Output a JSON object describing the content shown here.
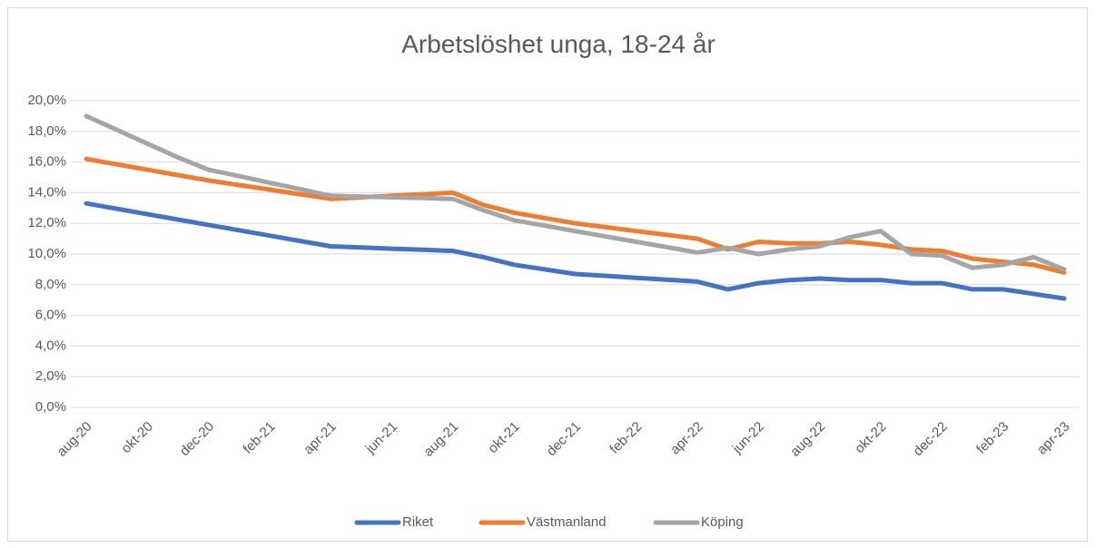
{
  "chart_data": {
    "type": "line",
    "title": "Arbetslöshet unga, 18-24 år",
    "categories": [
      "aug-20",
      null,
      "okt-20",
      null,
      "dec-20",
      null,
      "feb-21",
      null,
      "apr-21",
      null,
      "jun-21",
      null,
      "aug-21",
      null,
      "okt-21",
      null,
      "dec-21",
      null,
      "feb-22",
      null,
      "apr-22",
      null,
      "jun-22",
      null,
      "aug-22",
      null,
      "okt-22",
      null,
      "dec-22",
      null,
      "feb-23",
      null,
      "apr-23"
    ],
    "series": [
      {
        "name": "Riket",
        "color": "#4472c4",
        "values": [
          13.3,
          12.95,
          12.6,
          12.25,
          11.9,
          11.55,
          11.2,
          10.85,
          10.5,
          10.43,
          10.35,
          10.28,
          10.2,
          9.8,
          9.3,
          9.0,
          8.7,
          8.58,
          8.45,
          8.33,
          8.2,
          7.7,
          8.1,
          8.3,
          8.4,
          8.3,
          8.3,
          8.1,
          8.1,
          7.7,
          7.7,
          7.4,
          7.1
        ]
      },
      {
        "name": "Västmanland",
        "color": "#ed7d31",
        "values": [
          16.2,
          15.85,
          15.5,
          15.15,
          14.8,
          14.5,
          14.2,
          13.9,
          13.6,
          13.7,
          13.8,
          13.9,
          14.0,
          13.2,
          12.7,
          12.35,
          12.0,
          11.75,
          11.5,
          11.25,
          11.0,
          10.3,
          10.8,
          10.7,
          10.7,
          10.8,
          10.6,
          10.3,
          10.2,
          9.7,
          9.5,
          9.3,
          8.8
        ]
      },
      {
        "name": "Köping",
        "color": "#a5a5a5",
        "values": [
          19.0,
          18.1,
          17.2,
          16.3,
          15.5,
          15.08,
          14.65,
          14.23,
          13.8,
          13.75,
          13.7,
          13.65,
          13.6,
          12.85,
          12.2,
          11.85,
          11.5,
          11.15,
          10.8,
          10.45,
          10.1,
          10.4,
          10.0,
          10.3,
          10.5,
          11.1,
          11.5,
          10.0,
          9.9,
          9.1,
          9.3,
          9.8,
          9.0
        ]
      }
    ],
    "ylim": [
      0,
      20
    ],
    "yticks": [
      {
        "value": 0,
        "label": "0,0%"
      },
      {
        "value": 2,
        "label": "2,0%"
      },
      {
        "value": 4,
        "label": "4,0%"
      },
      {
        "value": 6,
        "label": "6,0%"
      },
      {
        "value": 8,
        "label": "8,0%"
      },
      {
        "value": 10,
        "label": "10,0%"
      },
      {
        "value": 12,
        "label": "12,0%"
      },
      {
        "value": 14,
        "label": "14,0%"
      },
      {
        "value": 16,
        "label": "16,0%"
      },
      {
        "value": 18,
        "label": "18,0%"
      },
      {
        "value": 20,
        "label": "20,0%"
      }
    ],
    "grid": true,
    "legend": "bottom"
  }
}
